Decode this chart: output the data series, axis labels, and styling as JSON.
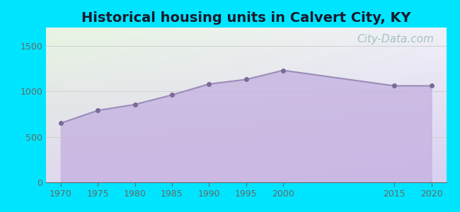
{
  "title": "Historical housing units in Calvert City, KY",
  "title_fontsize": 14,
  "title_color": "#1a1a2e",
  "background_color": "#00e5ff",
  "plot_bg_topleft": "#e8f5e2",
  "plot_bg_bottomright": "#ddd0ee",
  "years": [
    1970,
    1975,
    1980,
    1985,
    1990,
    1995,
    2000,
    2015,
    2020
  ],
  "values": [
    650,
    790,
    855,
    960,
    1080,
    1130,
    1230,
    1060,
    1060
  ],
  "area_color": "#c4b0e0",
  "area_alpha": 0.75,
  "line_color": "#9b8db8",
  "line_width": 1.5,
  "marker_color": "#7a6a9a",
  "marker_size": 4,
  "ylim": [
    0,
    1700
  ],
  "yticks": [
    0,
    500,
    1000,
    1500
  ],
  "xlim": [
    1968,
    2022
  ],
  "xticks": [
    1970,
    1975,
    1980,
    1985,
    1990,
    1995,
    2000,
    2015,
    2020
  ],
  "grid_color": "#d0d0d0",
  "watermark": "City-Data.com",
  "watermark_color": "#99bbbb",
  "watermark_fontsize": 11,
  "tick_color": "#666666",
  "tick_fontsize": 9
}
